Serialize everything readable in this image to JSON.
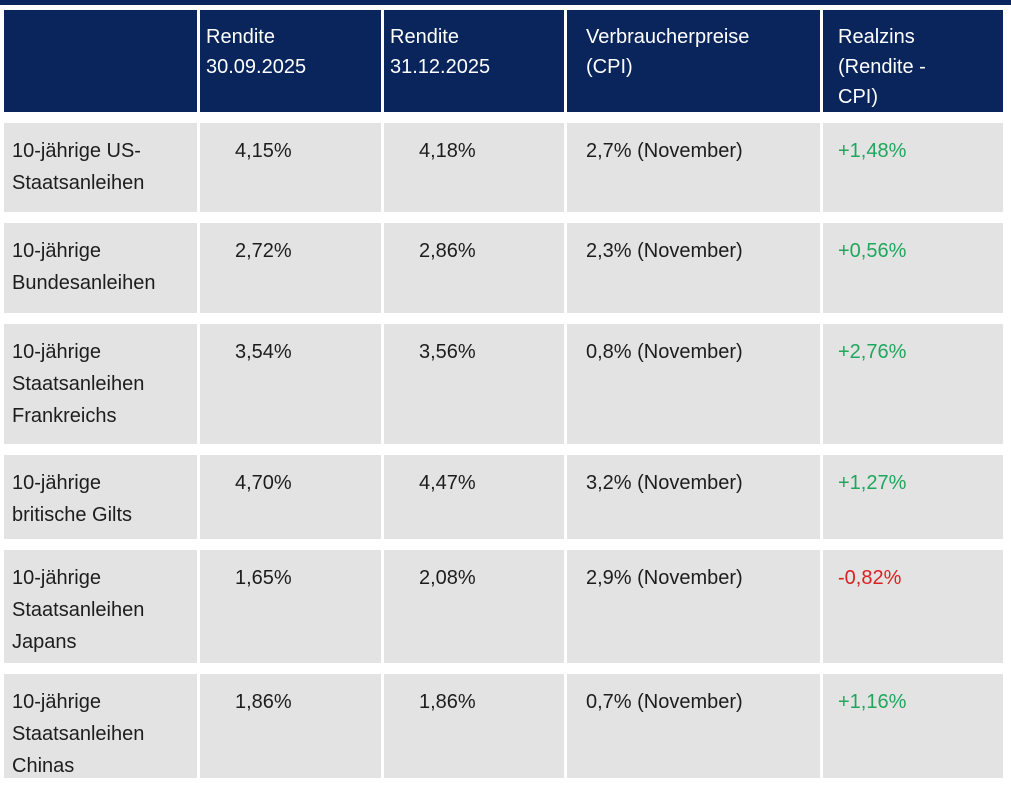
{
  "colors": {
    "header_bg": "#0a255c",
    "header_text": "#ffffff",
    "row_bg": "#e3e3e3",
    "body_text": "#1d1d1d",
    "positive": "#1fa75c",
    "negative": "#d92121",
    "page_bg": "#ffffff"
  },
  "display": {
    "header": {
      "col1": "",
      "col2": "Rendite\n30.09.2025",
      "col3": "Rendite\n31.12.2025",
      "col4": "Verbraucherpreise\n(CPI)",
      "col5": "Realzins\n(Rendite -\nCPI)"
    },
    "rows": [
      {
        "label": "10-jährige US-\nStaatsanleihen",
        "rendite_sep2025": "4,15%",
        "rendite_dez2025": "4,18%",
        "cpi": "2,7% (November)",
        "realzins": "+1,48%",
        "trend": "positive"
      },
      {
        "label": "10-jährige\nBundesanleihen",
        "rendite_sep2025": "2,72%",
        "rendite_dez2025": "2,86%",
        "cpi": "2,3% (November)",
        "realzins": "+0,56%",
        "trend": "positive"
      },
      {
        "label": "10-jährige\nStaatsanleihen\nFrankreichs",
        "rendite_sep2025": "3,54%",
        "rendite_dez2025": "3,56%",
        "cpi": "0,8% (November)",
        "realzins": "+2,76%",
        "trend": "positive"
      },
      {
        "label": "10-jährige\nbritische Gilts",
        "rendite_sep2025": "4,70%",
        "rendite_dez2025": "4,47%",
        "cpi": "3,2% (November)",
        "realzins": "+1,27%",
        "trend": "positive"
      },
      {
        "label": "10-jährige\nStaatsanleihen\nJapans",
        "rendite_sep2025": "1,65%",
        "rendite_dez2025": "2,08%",
        "cpi": "2,9% (November)",
        "realzins": "-0,82%",
        "trend": "negative"
      },
      {
        "label": "10-jährige\nStaatsanleihen\nChinas",
        "rendite_sep2025": "1,86%",
        "rendite_dez2025": "1,86%",
        "cpi": "0,7% (November)",
        "realzins": "+1,16%",
        "trend": "positive"
      }
    ]
  },
  "chart_data": {
    "type": "table",
    "columns": [
      "",
      "Rendite 30.09.2025",
      "Rendite 31.12.2025",
      "Verbraucherpreise (CPI)",
      "Realzins (Rendite - CPI)"
    ],
    "rows": [
      [
        "10-jährige US-Staatsanleihen",
        "4,15%",
        "4,18%",
        "2,7% (November)",
        "+1,48%"
      ],
      [
        "10-jährige Bundesanleihen",
        "2,72%",
        "2,86%",
        "2,3% (November)",
        "+0,56%"
      ],
      [
        "10-jährige Staatsanleihen Frankreichs",
        "3,54%",
        "3,56%",
        "0,8% (November)",
        "+2,76%"
      ],
      [
        "10-jährige britische Gilts",
        "4,70%",
        "4,47%",
        "3,2% (November)",
        "+1,27%"
      ],
      [
        "10-jährige Staatsanleihen Japans",
        "1,65%",
        "2,08%",
        "2,9% (November)",
        "-0,82%"
      ],
      [
        "10-jährige Staatsanleihen Chinas",
        "1,86%",
        "1,86%",
        "0,7% (November)",
        "+1,16%"
      ]
    ]
  }
}
